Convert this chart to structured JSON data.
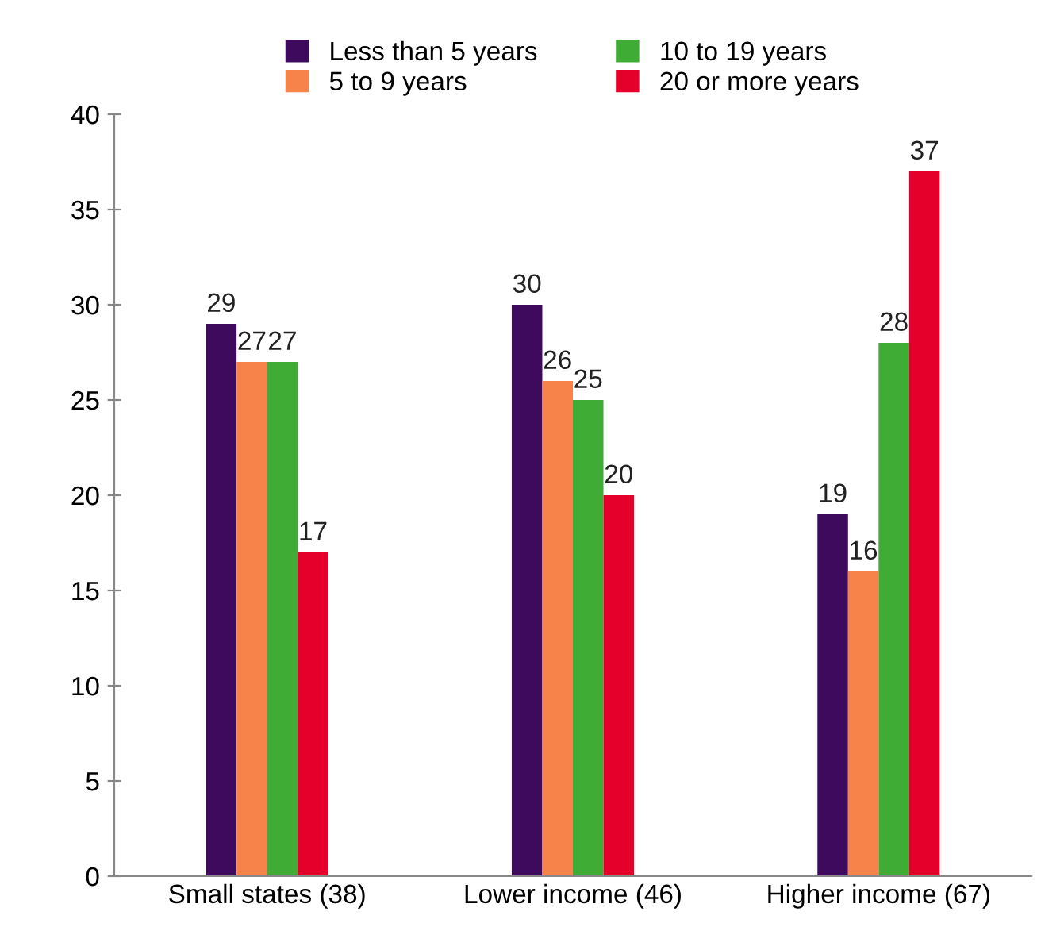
{
  "chart_data": {
    "type": "bar",
    "categories": [
      "Small states (38)",
      "Lower income (46)",
      "Higher income (67)"
    ],
    "series": [
      {
        "name": "Less than 5 years",
        "color": "#3d0a5e",
        "values": [
          29,
          30,
          19
        ]
      },
      {
        "name": "5 to 9 years",
        "color": "#f7834a",
        "values": [
          27,
          26,
          16
        ]
      },
      {
        "name": "10 to 19 years",
        "color": "#3fac35",
        "values": [
          27,
          25,
          28
        ]
      },
      {
        "name": "20 or more years",
        "color": "#e4002b",
        "values": [
          17,
          20,
          37
        ]
      }
    ],
    "ylim": [
      0,
      40
    ],
    "yticks": [
      0,
      5,
      10,
      15,
      20,
      25,
      30,
      35,
      40
    ],
    "data_labels": true,
    "legend": "top",
    "grid": false
  }
}
